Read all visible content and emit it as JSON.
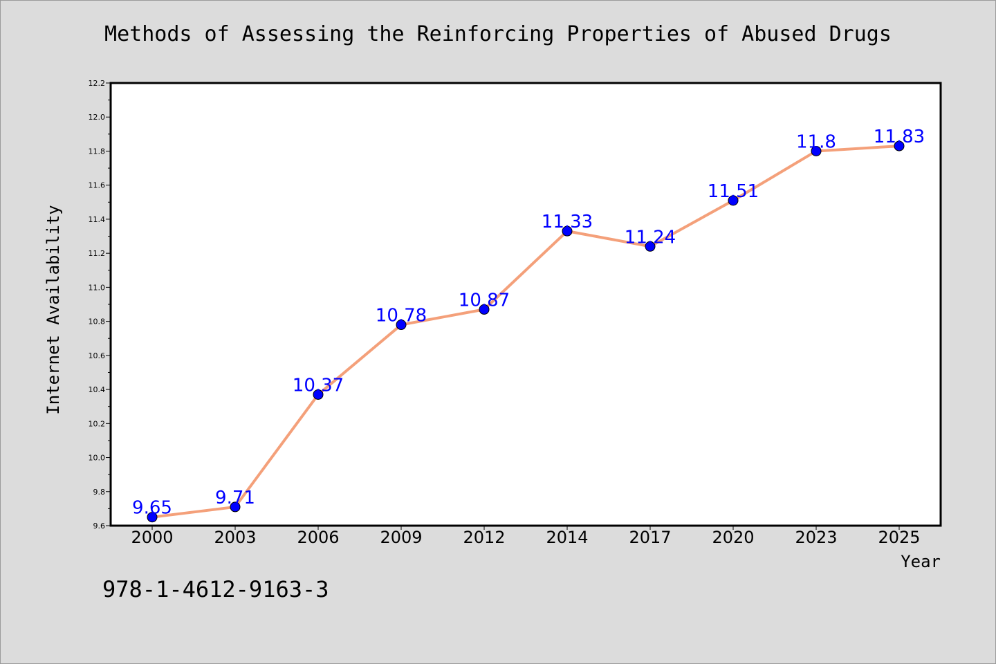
{
  "chart_data": {
    "type": "line",
    "title": "Methods of Assessing the Reinforcing Properties of Abused Drugs",
    "xlabel": "Year",
    "ylabel": "Internet Availability",
    "categories": [
      "2000",
      "2003",
      "2006",
      "2009",
      "2012",
      "2014",
      "2017",
      "2020",
      "2023",
      "2025"
    ],
    "series": [
      {
        "values": [
          9.65,
          9.71,
          10.37,
          10.78,
          10.87,
          11.33,
          11.24,
          11.51,
          11.8,
          11.83
        ],
        "labels": [
          "9.65",
          "9.71",
          "10.37",
          "10.78",
          "10.87",
          "11.33",
          "11.24",
          "11.51",
          "11.8",
          "11.83"
        ],
        "line_color": "#f4a07a",
        "marker_color": "#0000ff"
      }
    ],
    "ylim": [
      9.6,
      12.2
    ],
    "yticks": [
      "9.6",
      "9.8",
      "10.0",
      "10.2",
      "10.4",
      "10.6",
      "10.8",
      "11.0",
      "11.2",
      "11.4",
      "11.6",
      "11.8",
      "12.0",
      "12.2"
    ],
    "grid": false,
    "legend": "none"
  },
  "footer": {
    "isbn": "978-1-4612-9163-3"
  },
  "colors": {
    "background": "#dcdcdc",
    "plot_background": "#ffffff",
    "label_color": "#0000ff"
  }
}
